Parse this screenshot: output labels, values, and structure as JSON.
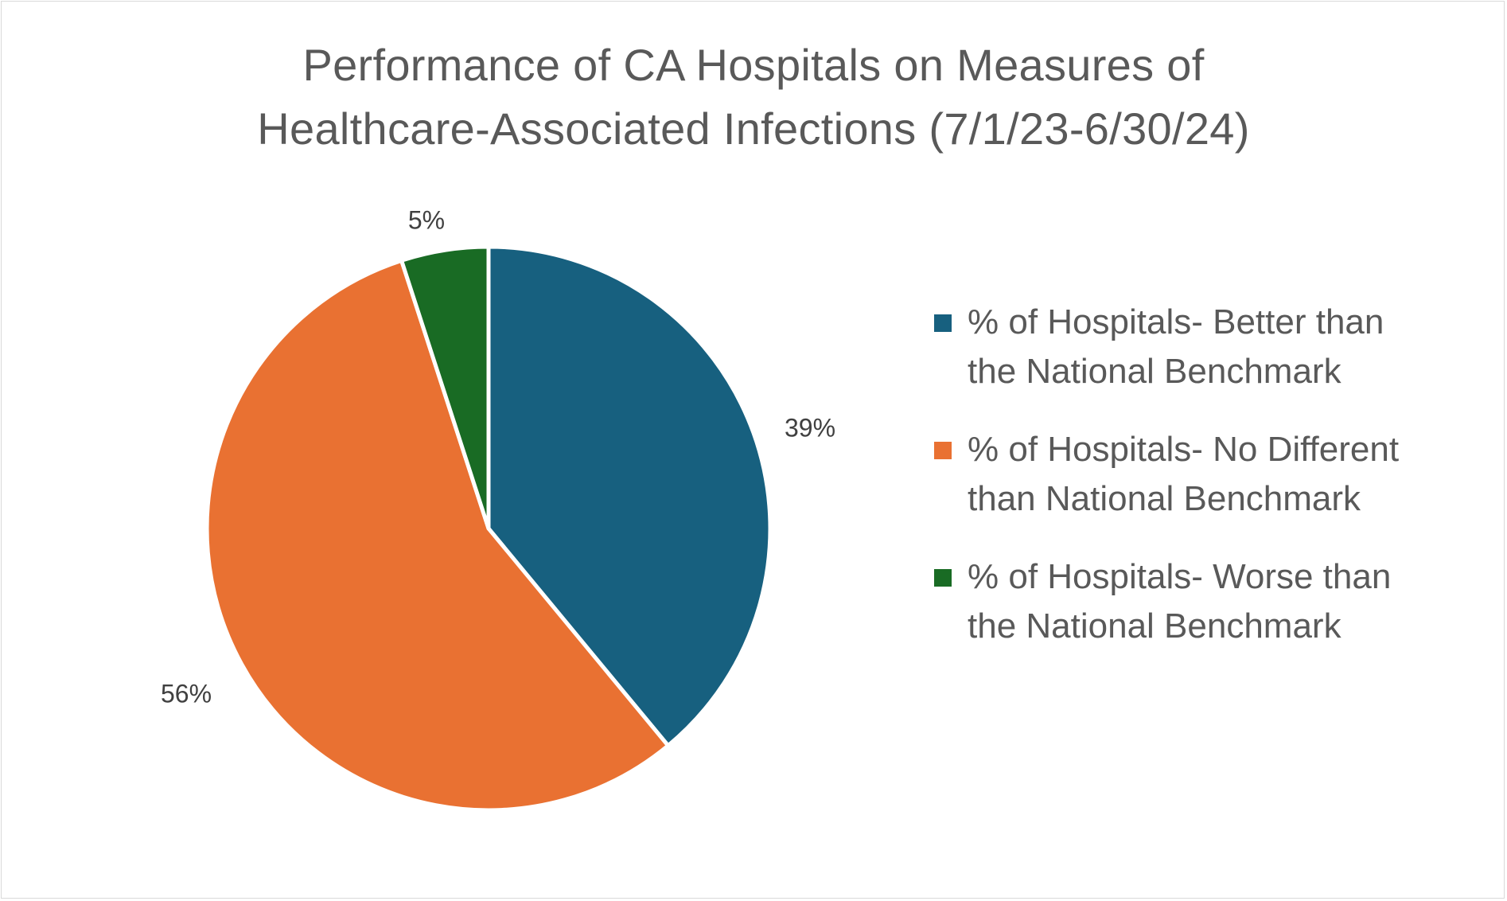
{
  "chart_data": {
    "type": "pie",
    "title_lines": [
      "Performance of CA Hospitals on Measures of",
      "Healthcare-Associated Infections (7/1/23-6/30/24)"
    ],
    "slices": [
      {
        "label": "% of Hospitals- Better than the National Benchmark",
        "legend_lines": [
          "% of Hospitals- Better than",
          "the National Benchmark"
        ],
        "value": 39,
        "display": "39%",
        "color": "#17607f"
      },
      {
        "label": "% of Hospitals- No Different than National Benchmark",
        "legend_lines": [
          "% of Hospitals- No Different",
          "than National Benchmark"
        ],
        "value": 56,
        "display": "56%",
        "color": "#e97132"
      },
      {
        "label": "% of Hospitals- Worse than the National Benchmark",
        "legend_lines": [
          "% of Hospitals- Worse than",
          "the National Benchmark"
        ],
        "value": 5,
        "display": "5%",
        "color": "#196b24"
      }
    ],
    "legend_position": "right",
    "start": "12 o'clock",
    "direction": "clockwise"
  }
}
